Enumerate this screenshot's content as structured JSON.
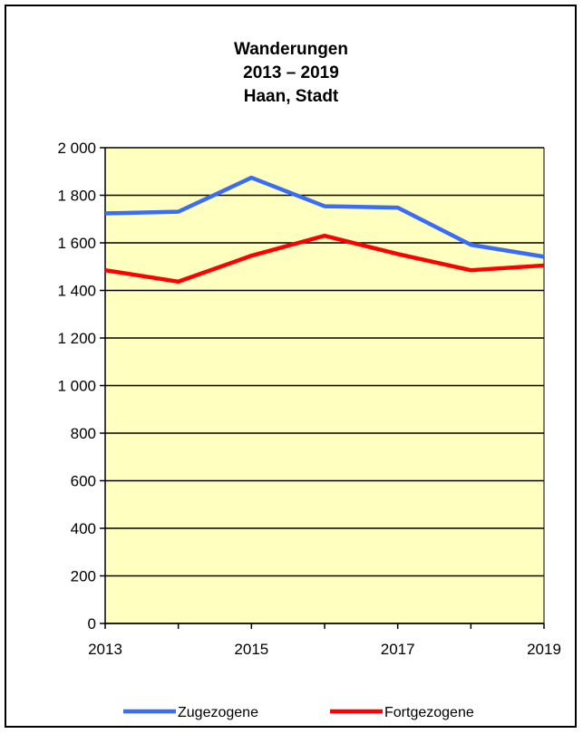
{
  "chart_data": {
    "type": "line",
    "title_lines": [
      "Wanderungen",
      "2013 – 2019",
      "Haan, Stadt"
    ],
    "x": [
      2013,
      2014,
      2015,
      2016,
      2017,
      2018,
      2019
    ],
    "x_tick_labels": [
      "2013",
      "2015",
      "2017",
      "2019"
    ],
    "y_tick_labels": [
      "0",
      "200",
      "400",
      "600",
      "800",
      "1 000",
      "1 200",
      "1 400",
      "1 600",
      "1 800",
      "2 000"
    ],
    "ylim": [
      0,
      2000
    ],
    "grid": true,
    "plot_background": "#ffffc0",
    "legend_position": "bottom",
    "series": [
      {
        "name": "Zugezogene",
        "color": "#3a6cf4",
        "values": [
          1724,
          1731,
          1874,
          1754,
          1748,
          1592,
          1542
        ]
      },
      {
        "name": "Fortgezogene",
        "color": "#ff0000",
        "values": [
          1485,
          1437,
          1546,
          1630,
          1553,
          1485,
          1505
        ]
      }
    ]
  }
}
